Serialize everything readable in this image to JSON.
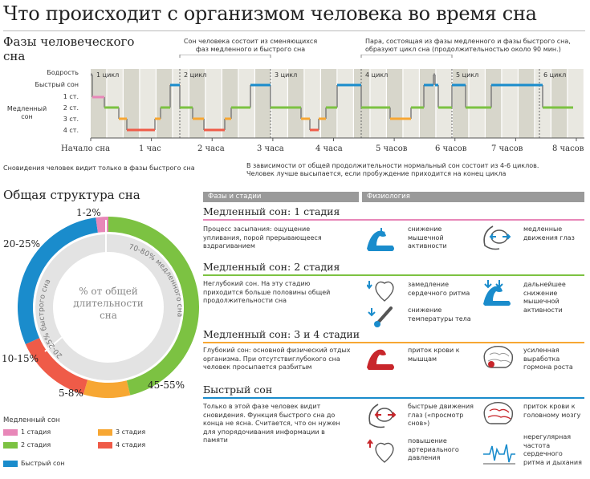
{
  "title": "Что происходит с организмом человека во время сна",
  "phases": {
    "heading_line1": "Фазы человеческого",
    "heading_line2": "сна",
    "annotation_left_line1": "Сон человека состоит из сменяющихся",
    "annotation_left_line2": "фаз медленного и быстрого сна",
    "annotation_right_line1": "Пара, состоящая из фазы медленного и фазы быстрого сна,",
    "annotation_right_line2": "образуют цикл сна (продолжительностью около 90 мин.)",
    "y_labels": {
      "wake": "Бодрость",
      "rem": "Быстрый сон",
      "nrem_line1": "Медленный",
      "nrem_line2": "сон",
      "s1": "1 ст.",
      "s2": "2 ст.",
      "s3": "3 ст.",
      "s4": "4 ст."
    },
    "cycles": [
      "1 цикл",
      "2 цикл",
      "3 цикл",
      "4 цикл",
      "5 цикл",
      "6 цикл"
    ],
    "time_labels": [
      "Начало сна",
      "1 час",
      "2 часа",
      "3 часа",
      "4 часа",
      "5 часов",
      "6 часов",
      "7 часов",
      "8 часов"
    ],
    "note_left": "Сновидения человек видит только в фазы быстрого сна",
    "note_right_line1": "В зависимости от общей продолжительности нормальный сон состоит из 4-6 циклов.",
    "note_right_line2": "Человек лучше высыпается, если пробуждение приходится на конец цикла"
  },
  "structure": {
    "heading": "Общая структура сна",
    "center_line1": "% от общей",
    "center_line2": "длительности",
    "center_line3": "сна",
    "ring_rem_label": "20-25% быстрого сна",
    "ring_nrem_label": "70-80% медленного сна",
    "pct_s1": "1-2%",
    "pct_rem": "20-25%",
    "pct_s4": "10-15%",
    "pct_s3": "5-8%",
    "pct_s2": "45-55%",
    "legend_heading": "Медленный сон",
    "legend": {
      "s1": "1 стадия",
      "s2": "2 стадия",
      "s3": "3 стадия",
      "s4": "4 стадия",
      "rem": "Быстрый сон"
    }
  },
  "table": {
    "col_phases": "Фазы и стадии",
    "col_physiology": "Физиология",
    "sections": [
      {
        "title": "Медленный сон: 1 стадия",
        "desc": [
          "Процесс засыпания: ощущение",
          "упливания, порой прерывающееся",
          "вздрагиванием"
        ],
        "items": [
          {
            "text": [
              "снижение",
              "мышечной",
              "активности"
            ],
            "icon": "arm-muscle-icon"
          },
          {
            "text": [
              "медленные",
              "движения глаз"
            ],
            "icon": "eye-icon"
          }
        ]
      },
      {
        "title": "Медленный сон: 2 стадия",
        "desc": [
          "Неглубокий сон. На эту стадию",
          "приходится больше половины общей",
          "продолжительности сна"
        ],
        "items": [
          {
            "text": [
              "замедление",
              "сердечного ритма"
            ],
            "icon": "heart-icon"
          },
          {
            "text": [
              "дальнейшее",
              "снижение",
              "мышечной",
              "активности"
            ],
            "icon": "arm-muscle-icon"
          },
          {
            "text": [
              "снижение",
              "температуры тела"
            ],
            "icon": "thermometer-icon"
          }
        ]
      },
      {
        "title": "Медленный сон: 3 и 4 стадии",
        "desc": [
          "Глубокий сон: основной физический отдых",
          "организма. При отсутствиглубокого сна",
          "человек просыпается разбитым"
        ],
        "items": [
          {
            "text": [
              "приток крови к",
              "мышцам"
            ],
            "icon": "arm-muscle-icon"
          },
          {
            "text": [
              "усиленная",
              "выработка",
              "гормона роста"
            ],
            "icon": "brain-icon"
          }
        ]
      },
      {
        "title": "Быстрый сон",
        "desc": [
          "Только в этой фазе человек видит",
          "сновидения. Функция быстрого сна до",
          "конца не ясна. Считается, что он нужен",
          "для упорядочивания информации в",
          "памяти"
        ],
        "items": [
          {
            "text": [
              "быстрые движения",
              "глаз («просмотр",
              "снов»)"
            ],
            "icon": "eye-icon"
          },
          {
            "text": [
              "приток крови к",
              "головному мозгу"
            ],
            "icon": "brain-icon"
          },
          {
            "text": [
              "повышение",
              "артериального",
              "давления"
            ],
            "icon": "heart-icon"
          },
          {
            "text": [
              "нерегулярная",
              "частота",
              "сердечного",
              "ритма и дыхания"
            ],
            "icon": "ecg-icon"
          }
        ]
      }
    ]
  },
  "colors": {
    "s1": "#e887b8",
    "s2": "#7cc242",
    "s3": "#f7a733",
    "s4": "#ef5b48",
    "rem": "#1a8ccc",
    "band_dark": "#d7d6cb",
    "band_light": "#e9e8e1"
  }
}
